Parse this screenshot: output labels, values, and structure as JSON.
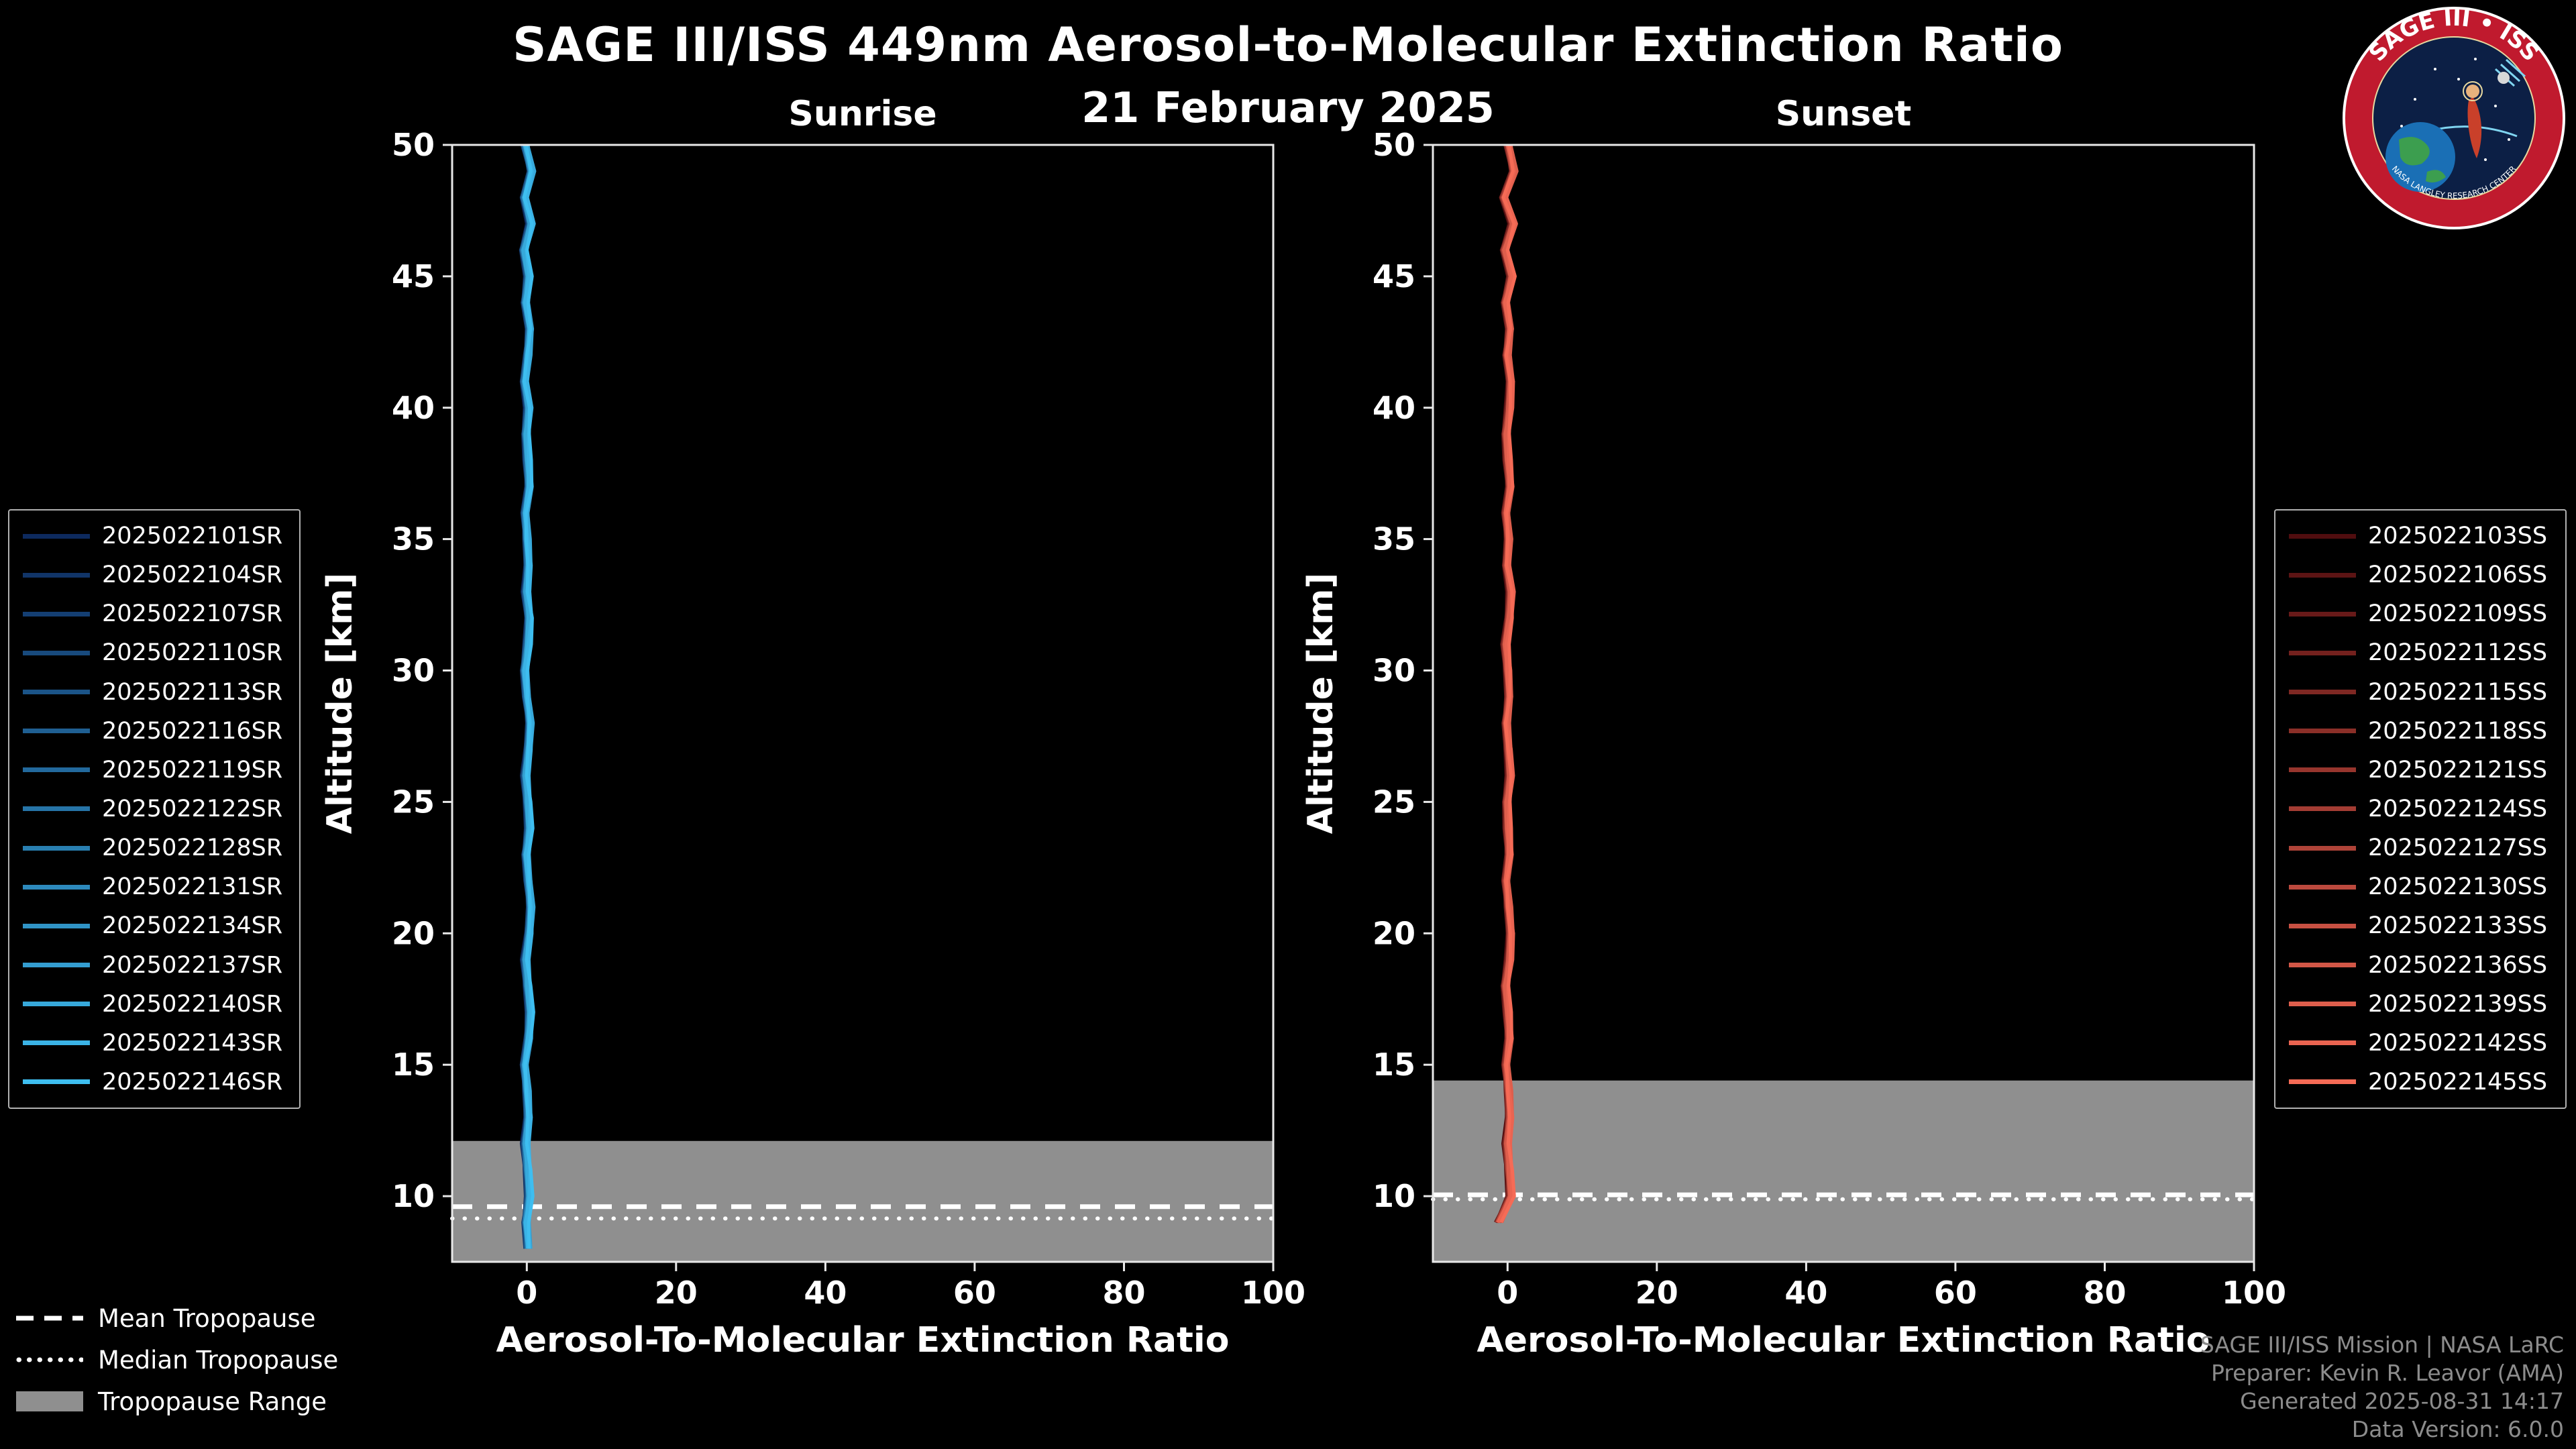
{
  "page": {
    "title": "SAGE III/ISS 449nm Aerosol-to-Molecular Extinction Ratio",
    "subtitle": "21 February 2025"
  },
  "chart_data": {
    "type": "line",
    "panels": [
      {
        "id": "sunrise",
        "title": "Sunrise",
        "xlabel": "Aerosol-To-Molecular Extinction Ratio",
        "ylabel": "Altitude [km]",
        "xlim": [
          -10,
          100
        ],
        "ylim": [
          7.5,
          50
        ],
        "xticks": [
          0,
          20,
          40,
          60,
          80,
          100
        ],
        "yticks": [
          10,
          15,
          20,
          25,
          30,
          35,
          40,
          45,
          50
        ],
        "tropopause": {
          "mean_km": 9.6,
          "median_km": 9.15,
          "range_top_km": 12.1,
          "range_bottom_km": 7.5
        },
        "series": [
          {
            "label": "2025022101SR",
            "color": "#0d2a5e"
          },
          {
            "label": "2025022104SR",
            "color": "#113568"
          },
          {
            "label": "2025022107SR",
            "color": "#143f73"
          },
          {
            "label": "2025022110SR",
            "color": "#184a7d"
          },
          {
            "label": "2025022113SR",
            "color": "#1b5488"
          },
          {
            "label": "2025022116SR",
            "color": "#1f5f92"
          },
          {
            "label": "2025022119SR",
            "color": "#22699d"
          },
          {
            "label": "2025022122SR",
            "color": "#2674a7"
          },
          {
            "label": "2025022128SR",
            "color": "#297fb1"
          },
          {
            "label": "2025022131SR",
            "color": "#2d89bc"
          },
          {
            "label": "2025022134SR",
            "color": "#3094c6"
          },
          {
            "label": "2025022137SR",
            "color": "#349ed1"
          },
          {
            "label": "2025022140SR",
            "color": "#37a9db"
          },
          {
            "label": "2025022143SR",
            "color": "#3bb3e6"
          },
          {
            "label": "2025022146SR",
            "color": "#3ebef0"
          }
        ],
        "profile": {
          "altitudes_km": [
            8,
            9,
            10,
            11,
            12,
            13,
            14,
            15,
            16,
            17,
            18,
            19,
            20,
            21,
            22,
            23,
            24,
            25,
            26,
            27,
            28,
            29,
            30,
            31,
            32,
            33,
            34,
            35,
            36,
            37,
            38,
            39,
            40,
            41,
            42,
            43,
            44,
            45,
            46,
            47,
            48,
            49,
            50
          ],
          "ratios": [
            0.2,
            -0.1,
            0.3,
            0.1,
            -0.2,
            0.2,
            0.0,
            -0.3,
            0.2,
            0.4,
            0.1,
            -0.2,
            0.3,
            0.5,
            0.2,
            -0.1,
            0.3,
            0.1,
            -0.2,
            0.2,
            0.4,
            0.0,
            -0.3,
            0.1,
            0.3,
            -0.1,
            0.2,
            0.0,
            -0.2,
            0.3,
            0.1,
            -0.1,
            0.2,
            -0.3,
            0.1,
            0.4,
            -0.2,
            0.2,
            -0.4,
            0.5,
            -0.3,
            0.6,
            -0.2
          ]
        }
      },
      {
        "id": "sunset",
        "title": "Sunset",
        "xlabel": "Aerosol-To-Molecular Extinction Ratio",
        "ylabel": "Altitude [km]",
        "xlim": [
          -10,
          100
        ],
        "ylim": [
          7.5,
          50
        ],
        "xticks": [
          0,
          20,
          40,
          60,
          80,
          100
        ],
        "yticks": [
          10,
          15,
          20,
          25,
          30,
          35,
          40,
          45,
          50
        ],
        "tropopause": {
          "mean_km": 10.05,
          "median_km": 9.88,
          "range_top_km": 14.4,
          "range_bottom_km": 7.5
        },
        "series": [
          {
            "label": "2025022103SS",
            "color": "#500d0f"
          },
          {
            "label": "2025022106SS",
            "color": "#5c1414"
          },
          {
            "label": "2025022109SS",
            "color": "#681a19"
          },
          {
            "label": "2025022112SS",
            "color": "#74211e"
          },
          {
            "label": "2025022115SS",
            "color": "#7f2823"
          },
          {
            "label": "2025022118SS",
            "color": "#8b2f28"
          },
          {
            "label": "2025022121SS",
            "color": "#97352d"
          },
          {
            "label": "2025022124SS",
            "color": "#a33c33"
          },
          {
            "label": "2025022127SS",
            "color": "#af4338"
          },
          {
            "label": "2025022130SS",
            "color": "#bb493d"
          },
          {
            "label": "2025022133SS",
            "color": "#c75042"
          },
          {
            "label": "2025022136SS",
            "color": "#d25747"
          },
          {
            "label": "2025022139SS",
            "color": "#de5e4c"
          },
          {
            "label": "2025022142SS",
            "color": "#ea6451"
          },
          {
            "label": "2025022145SS",
            "color": "#f66b56"
          }
        ],
        "profile": {
          "altitudes_km": [
            9,
            10,
            11,
            12,
            13,
            14,
            15,
            16,
            17,
            18,
            19,
            20,
            21,
            22,
            23,
            24,
            25,
            26,
            27,
            28,
            29,
            30,
            31,
            32,
            33,
            34,
            35,
            36,
            37,
            38,
            39,
            40,
            41,
            42,
            43,
            44,
            45,
            46,
            47,
            48,
            49,
            50
          ],
          "ratios": [
            -1.2,
            0.4,
            0.2,
            -0.1,
            0.3,
            0.1,
            -0.2,
            0.2,
            0.0,
            -0.3,
            0.2,
            0.4,
            0.1,
            -0.2,
            0.2,
            0.0,
            -0.1,
            0.3,
            0.1,
            -0.2,
            0.2,
            0.0,
            -0.3,
            0.2,
            0.4,
            -0.1,
            0.1,
            -0.2,
            0.3,
            0.0,
            -0.2,
            0.2,
            0.4,
            -0.1,
            0.3,
            -0.3,
            0.5,
            -0.4,
            0.7,
            -0.5,
            0.8,
            0.1
          ]
        }
      }
    ]
  },
  "tropopause_legend": {
    "mean": "Mean Tropopause",
    "median": "Median Tropopause",
    "range": "Tropopause Range"
  },
  "footer": {
    "lines": [
      "SAGE III/ISS Mission | NASA LaRC",
      "Preparer: Kevin R. Leavor (AMA)",
      "Generated 2025-08-31 14:17",
      "Data Version: 6.0.0"
    ]
  },
  "logo": {
    "top_text": "SAGE III • ISS",
    "bottom_text": "NASA LANGLEY RESEARCH CENTER"
  },
  "colors": {
    "background": "#000000",
    "band": "#8f8f8f",
    "axis": "#e8e8e8",
    "text": "#ffffff",
    "footer_text": "#8c8c8c",
    "legend_border": "#b0b0b0",
    "logo_ring": "#c01a2e",
    "logo_inner": "#0c1f45"
  }
}
